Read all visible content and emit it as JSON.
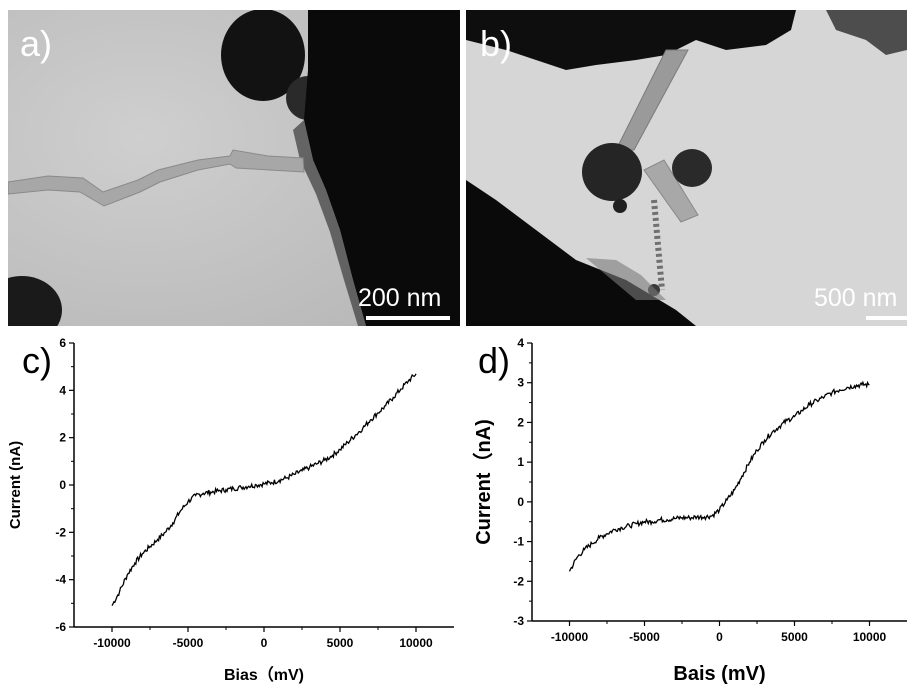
{
  "panels": {
    "a": {
      "label": "a)",
      "scale_bar": "200 nm"
    },
    "b": {
      "label": "b)",
      "scale_bar": "500 nm"
    },
    "c": {
      "label": "c)"
    },
    "d": {
      "label": "d)"
    }
  },
  "colors": {
    "trace": "#000000",
    "image_bg_a": "#c4c4c4",
    "image_bg_b": "#d4d4d4",
    "dark_region": "#0c0c0c"
  },
  "chart_data": [
    {
      "panel": "c",
      "type": "line",
      "title": "",
      "xlabel": "Bias（mV)",
      "ylabel": "Current (nA)",
      "xlim": [
        -12500,
        12500
      ],
      "ylim": [
        -6,
        6
      ],
      "xticks": [
        -10000,
        -5000,
        0,
        5000,
        10000
      ],
      "xtick_labels": [
        "-10000",
        "-5000",
        "0",
        "5000",
        "10000"
      ],
      "yticks": [
        -6,
        -4,
        -2,
        0,
        2,
        4,
        6
      ],
      "ytick_labels": [
        "-6",
        "-4",
        "-2",
        "0",
        "2",
        "4",
        "6"
      ],
      "series": [
        {
          "x": [
            -10000,
            -9500,
            -9000,
            -8500,
            -8000,
            -7500,
            -7000,
            -6500,
            -6000,
            -5500,
            -5000,
            -4500,
            -4000,
            -3500,
            -3000,
            -2500,
            -2000,
            -1500,
            -1000,
            -500,
            0,
            500,
            1000,
            1500,
            2000,
            2500,
            3000,
            3500,
            4000,
            4500,
            5000,
            5500,
            6000,
            6500,
            7000,
            7500,
            8000,
            8500,
            9000,
            9500,
            10000
          ],
          "y": [
            -5.1,
            -4.5,
            -3.8,
            -3.3,
            -2.9,
            -2.6,
            -2.3,
            -2.0,
            -1.6,
            -1.1,
            -0.7,
            -0.45,
            -0.35,
            -0.3,
            -0.25,
            -0.2,
            -0.15,
            -0.1,
            -0.05,
            0,
            0.05,
            0.1,
            0.2,
            0.3,
            0.45,
            0.6,
            0.75,
            0.9,
            1.05,
            1.25,
            1.5,
            1.8,
            2.1,
            2.4,
            2.75,
            3.05,
            3.35,
            3.7,
            4.05,
            4.4,
            4.7
          ]
        }
      ]
    },
    {
      "panel": "d",
      "type": "line",
      "title": "",
      "xlabel": "Bais (mV)",
      "ylabel": "Current（nA)",
      "xlim": [
        -12500,
        12500
      ],
      "ylim": [
        -3,
        4
      ],
      "xticks": [
        -10000,
        -5000,
        0,
        5000,
        10000
      ],
      "xtick_labels": [
        "-10000",
        "-5000",
        "0",
        "5000",
        "10000"
      ],
      "yticks": [
        -3,
        -2,
        -1,
        0,
        1,
        2,
        3,
        4
      ],
      "ytick_labels": [
        "-3",
        "-2",
        "-1",
        "0",
        "1",
        "2",
        "3",
        "4"
      ],
      "series": [
        {
          "x": [
            -10000,
            -9500,
            -9000,
            -8500,
            -8000,
            -7500,
            -7000,
            -6500,
            -6000,
            -5500,
            -5000,
            -4500,
            -4000,
            -3500,
            -3000,
            -2500,
            -2000,
            -1500,
            -1000,
            -500,
            0,
            500,
            1000,
            1500,
            2000,
            2500,
            3000,
            3500,
            4000,
            4500,
            5000,
            5500,
            6000,
            6500,
            7000,
            7500,
            8000,
            8500,
            9000,
            9500,
            10000
          ],
          "y": [
            -1.75,
            -1.4,
            -1.2,
            -1.05,
            -0.9,
            -0.8,
            -0.7,
            -0.65,
            -0.6,
            -0.55,
            -0.5,
            -0.5,
            -0.45,
            -0.45,
            -0.42,
            -0.4,
            -0.4,
            -0.38,
            -0.38,
            -0.35,
            -0.2,
            0.05,
            0.3,
            0.65,
            1.0,
            1.3,
            1.55,
            1.75,
            1.9,
            2.05,
            2.15,
            2.3,
            2.45,
            2.55,
            2.65,
            2.75,
            2.82,
            2.88,
            2.92,
            2.95,
            2.95
          ]
        }
      ]
    }
  ]
}
